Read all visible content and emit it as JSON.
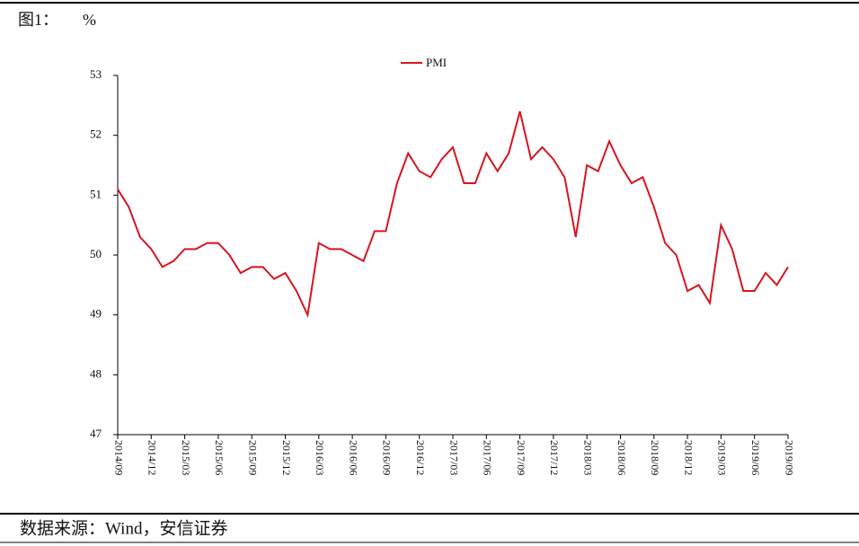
{
  "header": {
    "figure_label": "图1：",
    "unit": "%"
  },
  "chart_data": {
    "type": "line",
    "categories": [
      "2014/09",
      null,
      null,
      "2014/12",
      null,
      null,
      "2015/03",
      null,
      null,
      "2015/06",
      null,
      null,
      "2015/09",
      null,
      null,
      "2015/12",
      null,
      null,
      "2016/03",
      null,
      null,
      "2016/06",
      null,
      null,
      "2016/09",
      null,
      null,
      "2016/12",
      null,
      null,
      "2017/03",
      null,
      null,
      "2017/06",
      null,
      null,
      "2017/09",
      null,
      null,
      "2017/12",
      null,
      null,
      "2018/03",
      null,
      null,
      "2018/06",
      null,
      null,
      "2018/09",
      null,
      null,
      "2018/12",
      null,
      null,
      "2019/03",
      null,
      null,
      "2019/06",
      null,
      null,
      "2019/09"
    ],
    "series": [
      {
        "name": "PMI",
        "color": "#d7151f",
        "values": [
          51.1,
          50.8,
          50.3,
          50.1,
          49.8,
          49.9,
          50.1,
          50.1,
          50.2,
          50.2,
          50.0,
          49.7,
          49.8,
          49.8,
          49.6,
          49.7,
          49.4,
          49.0,
          50.2,
          50.1,
          50.1,
          50.0,
          49.9,
          50.4,
          50.4,
          51.2,
          51.7,
          51.4,
          51.3,
          51.6,
          51.8,
          51.2,
          51.2,
          51.7,
          51.4,
          51.7,
          52.4,
          51.6,
          51.8,
          51.6,
          51.3,
          50.3,
          51.5,
          51.4,
          51.9,
          51.5,
          51.2,
          51.3,
          50.8,
          50.2,
          50.0,
          49.4,
          49.5,
          49.2,
          50.5,
          50.1,
          49.4,
          49.4,
          49.7,
          49.5,
          49.8
        ]
      }
    ],
    "ylim": [
      47,
      53
    ],
    "yticks": [
      47,
      48,
      49,
      50,
      51,
      52,
      53
    ],
    "legend": "top"
  },
  "footer": {
    "source": "数据来源：Wind，安信证券"
  }
}
